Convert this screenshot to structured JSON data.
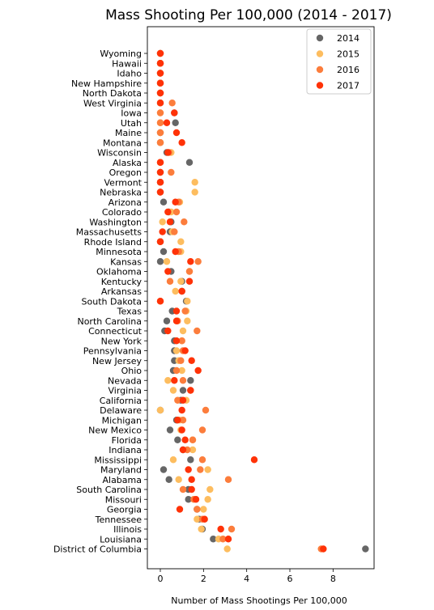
{
  "chart_data": {
    "type": "scatter",
    "title": "Mass Shooting Per 100,000 (2014 - 2017)",
    "xlabel": "Number of Mass Shootings Per 100,000",
    "ylabel": "",
    "xlim": [
      -0.6,
      9.9
    ],
    "xticks": [
      0,
      2,
      4,
      6,
      8
    ],
    "grid": false,
    "legend_position": "top-right",
    "categories": [
      "Wyoming",
      "Hawaii",
      "Idaho",
      "New Hampshire",
      "North Dakota",
      "West Virginia",
      "Iowa",
      "Utah",
      "Maine",
      "Montana",
      "Wisconsin",
      "Alaska",
      "Oregon",
      "Vermont",
      "Nebraska",
      "Arizona",
      "Colorado",
      "Washington",
      "Massachusetts",
      "Rhode Island",
      "Minnesota",
      "Kansas",
      "Oklahoma",
      "Kentucky",
      "Arkansas",
      "South Dakota",
      "Texas",
      "North Carolina",
      "Connecticut",
      "New York",
      "Pennsylvania",
      "New Jersey",
      "Ohio",
      "Nevada",
      "Virginia",
      "California",
      "Delaware",
      "Michigan",
      "New Mexico",
      "Florida",
      "Indiana",
      "Mississippi",
      "Maryland",
      "Alabama",
      "South Carolina",
      "Missouri",
      "Georgia",
      "Tennessee",
      "Illinois",
      "Louisiana",
      "District of Columbia"
    ],
    "series": [
      {
        "name": "2014",
        "color": "#666666",
        "values": [
          0,
          0,
          0,
          0,
          0,
          0,
          0.65,
          0.7,
          0,
          0,
          0.3,
          1.35,
          0,
          0,
          0,
          0.15,
          0.4,
          0.5,
          0.45,
          0,
          0.15,
          0,
          0.5,
          1.0,
          1.0,
          1.2,
          0.55,
          0.3,
          0.2,
          0.65,
          0.65,
          0.65,
          0.6,
          1.4,
          1.05,
          0.95,
          0,
          0.75,
          0.45,
          0.8,
          1.05,
          1.4,
          0.15,
          0.4,
          1.3,
          1.3,
          1.7,
          1.8,
          1.95,
          2.45,
          9.5
        ]
      },
      {
        "name": "2015",
        "color": "#fdbd5f",
        "values": [
          0,
          0,
          0,
          0,
          0,
          0,
          0,
          0,
          0,
          0,
          0.5,
          0,
          0,
          1.6,
          1.6,
          0.9,
          0.5,
          0.1,
          0.55,
          0.95,
          0.95,
          0.3,
          1.35,
          0.95,
          0.7,
          1.25,
          1.2,
          1.25,
          1.05,
          1.0,
          0.75,
          0.85,
          1.0,
          0.35,
          0.6,
          1.2,
          0,
          0.9,
          0.95,
          1.5,
          1.5,
          0.6,
          2.2,
          0.85,
          2.3,
          2.2,
          2.0,
          1.7,
          1.9,
          2.7,
          3.1
        ]
      },
      {
        "name": "2016",
        "color": "#fc7d3c",
        "values": [
          0,
          0,
          0,
          0,
          0,
          0.55,
          0,
          0,
          0,
          0,
          0.4,
          0,
          0.5,
          0,
          0,
          0.85,
          0.75,
          1.1,
          0.65,
          0,
          0.85,
          1.75,
          1.35,
          0.45,
          1.0,
          0,
          1.15,
          0.8,
          1.7,
          1.0,
          1.05,
          0.95,
          0.75,
          1.05,
          1.4,
          0.8,
          2.1,
          1.05,
          1.95,
          1.5,
          1.25,
          1.95,
          1.85,
          3.15,
          1.05,
          1.55,
          1.7,
          1.95,
          3.3,
          2.9,
          7.45
        ]
      },
      {
        "name": "2017",
        "color": "#ff3207",
        "values": [
          0,
          0,
          0,
          0,
          0,
          0,
          0.65,
          0.3,
          0.75,
          1.0,
          0.35,
          0,
          0,
          0,
          0,
          0.7,
          0.35,
          0.45,
          0.1,
          0,
          0.7,
          1.4,
          0.35,
          1.35,
          1.0,
          0,
          0.75,
          0.75,
          0.35,
          0.75,
          1.15,
          1.45,
          1.75,
          0.65,
          1.4,
          1.05,
          1.0,
          0.8,
          1.0,
          1.15,
          1.05,
          4.35,
          1.3,
          1.45,
          1.45,
          1.65,
          0.9,
          2.05,
          2.8,
          3.15,
          7.55
        ]
      }
    ]
  }
}
